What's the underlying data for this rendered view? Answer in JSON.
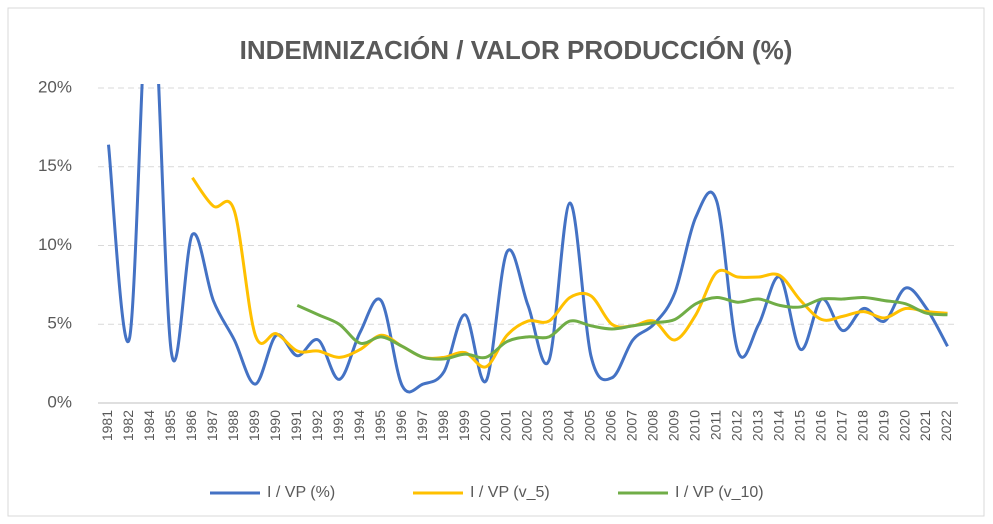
{
  "chart_data": {
    "type": "line",
    "title": "INDEMNIZACIÓN / VALOR PRODUCCIÓN (%)",
    "categories": [
      "1981",
      "1982",
      "1984",
      "1985",
      "1986",
      "1987",
      "1988",
      "1989",
      "1990",
      "1991",
      "1992",
      "1993",
      "1994",
      "1995",
      "1996",
      "1997",
      "1998",
      "1999",
      "2000",
      "2001",
      "2002",
      "2003",
      "2004",
      "2005",
      "2006",
      "2007",
      "2008",
      "2009",
      "2010",
      "2011",
      "2012",
      "2013",
      "2014",
      "2015",
      "2016",
      "2017",
      "2018",
      "2019",
      "2020",
      "2021",
      "2022"
    ],
    "series": [
      {
        "name": "I / VP (%)",
        "color": "#4472c4",
        "values": [
          16.4,
          4.1,
          28,
          3.2,
          10.7,
          6.5,
          4.0,
          1.2,
          4.3,
          3.0,
          4.0,
          1.5,
          4.5,
          6.5,
          1.1,
          1.2,
          2.0,
          5.6,
          1.4,
          9.6,
          6.2,
          2.7,
          12.7,
          3.0,
          1.6,
          4.0,
          5.0,
          7.0,
          11.8,
          12.8,
          3.3,
          5.0,
          8.0,
          3.4,
          6.6,
          4.6,
          6.0,
          5.2,
          7.3,
          6.0,
          3.6
        ]
      },
      {
        "name": "I / VP (v_5)",
        "color": "#ffc000",
        "values": [
          null,
          null,
          null,
          null,
          14.3,
          12.5,
          12.2,
          4.3,
          4.4,
          3.3,
          3.3,
          2.9,
          3.4,
          4.3,
          3.6,
          2.9,
          2.9,
          3.2,
          2.3,
          4.3,
          5.2,
          5.2,
          6.7,
          6.8,
          5.0,
          4.9,
          5.2,
          4.0,
          5.6,
          8.3,
          8.0,
          8.0,
          8.1,
          6.5,
          5.3,
          5.5,
          5.8,
          5.4,
          6.0,
          5.8,
          5.7
        ]
      },
      {
        "name": "I / VP (v_10)",
        "color": "#70ad47",
        "values": [
          null,
          null,
          null,
          null,
          null,
          null,
          null,
          null,
          null,
          6.2,
          5.6,
          5.0,
          3.8,
          4.2,
          3.6,
          2.9,
          2.8,
          3.1,
          2.9,
          3.9,
          4.2,
          4.2,
          5.2,
          4.9,
          4.7,
          4.9,
          5.1,
          5.3,
          6.3,
          6.7,
          6.4,
          6.6,
          6.2,
          6.1,
          6.6,
          6.6,
          6.7,
          6.5,
          6.3,
          5.7,
          5.6
        ]
      }
    ],
    "ylim": [
      0,
      20
    ],
    "yticks": [
      {
        "value": 0,
        "label": "0%"
      },
      {
        "value": 5,
        "label": "5%"
      },
      {
        "value": 10,
        "label": "10%"
      },
      {
        "value": 15,
        "label": "15%"
      },
      {
        "value": 20,
        "label": "20%"
      }
    ],
    "grid": true,
    "legend": "bottom"
  }
}
